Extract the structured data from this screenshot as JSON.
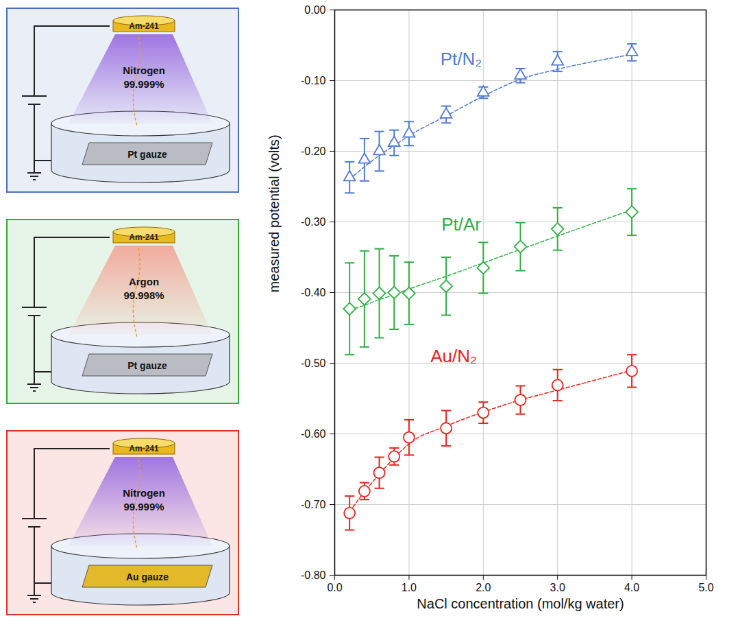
{
  "chart_data": {
    "type": "scatter",
    "x_label": "NaCl concentration (mol/kg water)",
    "y_label": "measured potential (volts)",
    "x": [
      0.2,
      0.4,
      0.6,
      0.8,
      1.0,
      1.5,
      2.0,
      2.5,
      3.0,
      4.0
    ],
    "xlim": [
      0,
      5
    ],
    "xticks": [
      {
        "value": 0,
        "label": "0.0"
      },
      {
        "value": 1,
        "label": "1.0"
      },
      {
        "value": 2,
        "label": "2.0"
      },
      {
        "value": 3,
        "label": "3.0"
      },
      {
        "value": 4,
        "label": "4.0"
      },
      {
        "value": 5,
        "label": "5.0"
      }
    ],
    "ylim": [
      -0.8,
      0
    ],
    "yticks": [
      {
        "value": 0,
        "label": "0.00"
      },
      {
        "value": -0.1,
        "label": "-0.10"
      },
      {
        "value": -0.2,
        "label": "-0.20"
      },
      {
        "value": -0.3,
        "label": "-0.30"
      },
      {
        "value": -0.4,
        "label": "-0.40"
      },
      {
        "value": -0.5,
        "label": "-0.50"
      },
      {
        "value": -0.6,
        "label": "-0.60"
      },
      {
        "value": -0.7,
        "label": "-0.70"
      },
      {
        "value": -0.8,
        "label": "-0.80"
      }
    ],
    "grid": true,
    "series": [
      {
        "name": "Pt/N₂",
        "color": "#4f7bd0",
        "marker": "triangle",
        "line_style": "dashed",
        "values": [
          -0.237,
          -0.212,
          -0.2,
          -0.188,
          -0.175,
          -0.148,
          -0.117,
          -0.093,
          -0.073,
          -0.06
        ],
        "errors": [
          0.022,
          0.03,
          0.028,
          0.018,
          0.017,
          0.012,
          0.008,
          0.01,
          0.014,
          0.012
        ],
        "fit": [
          -0.24,
          -0.222,
          -0.206,
          -0.192,
          -0.178,
          -0.15,
          -0.122,
          -0.098,
          -0.084,
          -0.063
        ]
      },
      {
        "name": "Pt/Ar",
        "color": "#2fae45",
        "marker": "diamond",
        "line_style": "dashed",
        "values": [
          -0.423,
          -0.409,
          -0.401,
          -0.4,
          -0.401,
          -0.391,
          -0.365,
          -0.335,
          -0.31,
          -0.286
        ],
        "errors": [
          0.065,
          0.068,
          0.063,
          0.052,
          0.044,
          0.041,
          0.036,
          0.034,
          0.03,
          0.033
        ],
        "fit": [
          -0.425,
          -0.418,
          -0.41,
          -0.403,
          -0.395,
          -0.377,
          -0.358,
          -0.339,
          -0.32,
          -0.283
        ]
      },
      {
        "name": "Au/N₂",
        "color": "#e8231e",
        "marker": "circle",
        "line_style": "dashed",
        "values": [
          -0.712,
          -0.681,
          -0.655,
          -0.632,
          -0.605,
          -0.592,
          -0.57,
          -0.552,
          -0.531,
          -0.511
        ],
        "errors": [
          0.024,
          0.012,
          0.022,
          0.012,
          0.025,
          0.025,
          0.015,
          0.02,
          0.022,
          0.023
        ],
        "fit": [
          -0.71,
          -0.682,
          -0.657,
          -0.634,
          -0.614,
          -0.589,
          -0.569,
          -0.552,
          -0.538,
          -0.51
        ]
      }
    ]
  },
  "panels": [
    {
      "source": "Am-241",
      "gas": "Nitrogen",
      "purity": "99.999%",
      "electrode": "Pt gauze",
      "color": "#4a6fc0"
    },
    {
      "source": "Am-241",
      "gas": "Argon",
      "purity": "99.998%",
      "electrode": "Pt gauze",
      "color": "#35a83e"
    },
    {
      "source": "Am-241",
      "gas": "Nitrogen",
      "purity": "99.999%",
      "electrode": "Au gauze",
      "color": "#e0302a"
    }
  ]
}
